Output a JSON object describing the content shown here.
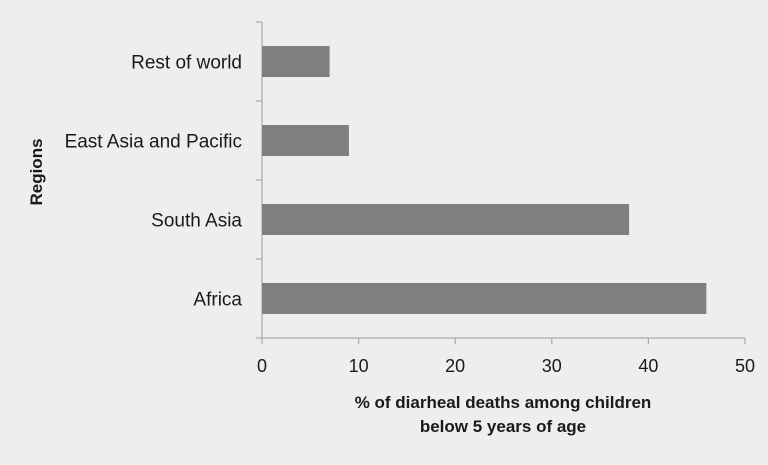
{
  "chart_data": {
    "type": "bar",
    "orientation": "horizontal",
    "categories": [
      "Rest of world",
      "East Asia and Pacific",
      "South Asia",
      "Africa"
    ],
    "values": [
      7,
      9,
      38,
      46
    ],
    "xlabel_lines": [
      "% of diarheal deaths among children",
      "below 5 years of age"
    ],
    "ylabel": "Regions",
    "xlim": [
      0,
      50
    ],
    "xticks": [
      0,
      10,
      20,
      30,
      40,
      50
    ],
    "grid": false,
    "legend": "none",
    "bar_color": "#7f7f7f"
  }
}
